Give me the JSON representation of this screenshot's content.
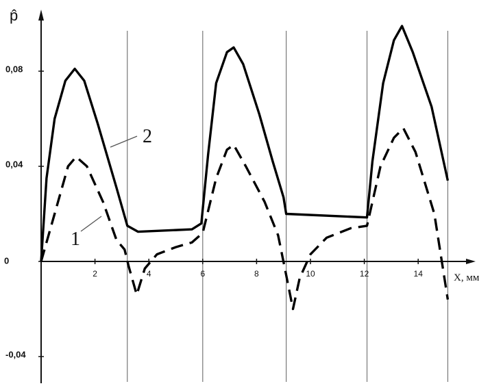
{
  "chart_data": {
    "type": "line",
    "ylabel": "p̂",
    "xlabel": "X, мм",
    "xlim": [
      0,
      15.5
    ],
    "ylim": [
      -0.05,
      0.105
    ],
    "x_ticks": [
      {
        "value": 2,
        "label": "2"
      },
      {
        "value": 4,
        "label": "4"
      },
      {
        "value": 6,
        "label": "6"
      },
      {
        "value": 8,
        "label": "8"
      },
      {
        "value": 10,
        "label": "10"
      },
      {
        "value": 12,
        "label": "12"
      },
      {
        "value": 14,
        "label": "14"
      }
    ],
    "y_ticks": [
      {
        "value": 0.08,
        "label": "0,08"
      },
      {
        "value": 0.04,
        "label": "0,04"
      },
      {
        "value": 0,
        "label": "0"
      },
      {
        "value": -0.04,
        "label": "-0,04"
      }
    ],
    "vertical_lines": [
      3.2,
      6.0,
      9.1,
      12.1,
      15.1
    ],
    "series": [
      {
        "name": "2",
        "style": "solid",
        "points": [
          [
            0,
            0
          ],
          [
            0.2,
            0.035
          ],
          [
            0.5,
            0.06
          ],
          [
            0.9,
            0.076
          ],
          [
            1.25,
            0.081
          ],
          [
            1.6,
            0.076
          ],
          [
            2.1,
            0.058
          ],
          [
            2.8,
            0.031
          ],
          [
            3.2,
            0.015
          ],
          [
            3.6,
            0.0125
          ],
          [
            5.6,
            0.0135
          ],
          [
            5.95,
            0.016
          ],
          [
            6.2,
            0.045
          ],
          [
            6.5,
            0.075
          ],
          [
            6.9,
            0.088
          ],
          [
            7.15,
            0.09
          ],
          [
            7.5,
            0.083
          ],
          [
            8.1,
            0.062
          ],
          [
            8.6,
            0.042
          ],
          [
            9.0,
            0.027
          ],
          [
            9.1,
            0.02
          ],
          [
            12.1,
            0.0185
          ],
          [
            12.3,
            0.042
          ],
          [
            12.7,
            0.075
          ],
          [
            13.1,
            0.093
          ],
          [
            13.4,
            0.099
          ],
          [
            13.8,
            0.088
          ],
          [
            14.5,
            0.065
          ],
          [
            15.1,
            0.034
          ]
        ]
      },
      {
        "name": "1",
        "style": "dashed",
        "points": [
          [
            0,
            0
          ],
          [
            0.5,
            0.02
          ],
          [
            1.0,
            0.04
          ],
          [
            1.3,
            0.044
          ],
          [
            1.7,
            0.04
          ],
          [
            2.3,
            0.025
          ],
          [
            2.8,
            0.009
          ],
          [
            3.1,
            0.005
          ],
          [
            3.25,
            -0.002
          ],
          [
            3.55,
            -0.014
          ],
          [
            3.85,
            -0.003
          ],
          [
            4.3,
            0.003
          ],
          [
            5.0,
            0.006
          ],
          [
            5.6,
            0.008
          ],
          [
            6.0,
            0.012
          ],
          [
            6.5,
            0.035
          ],
          [
            6.9,
            0.047
          ],
          [
            7.15,
            0.049
          ],
          [
            7.6,
            0.04
          ],
          [
            8.3,
            0.025
          ],
          [
            8.8,
            0.011
          ],
          [
            9.05,
            -0.003
          ],
          [
            9.35,
            -0.02
          ],
          [
            9.6,
            -0.007
          ],
          [
            10.0,
            0.003
          ],
          [
            10.6,
            0.01
          ],
          [
            11.5,
            0.014
          ],
          [
            12.1,
            0.015
          ],
          [
            12.6,
            0.04
          ],
          [
            13.1,
            0.052
          ],
          [
            13.45,
            0.056
          ],
          [
            13.9,
            0.046
          ],
          [
            14.6,
            0.02
          ],
          [
            15.1,
            -0.016
          ]
        ]
      }
    ],
    "annotations": [
      {
        "text": "2",
        "series": "2"
      },
      {
        "text": "1",
        "series": "1"
      }
    ]
  }
}
